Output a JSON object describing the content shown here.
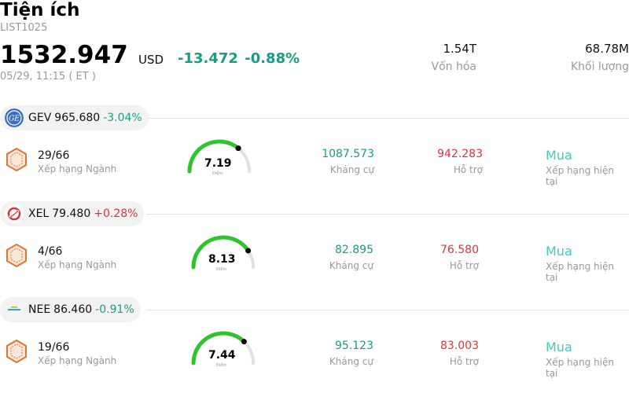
{
  "header": {
    "title": "Tiện ích",
    "code": "LIST1025",
    "price": "1532.947",
    "currency": "USD",
    "change": "-13.472",
    "change_pct": "-0.88%",
    "timestamp": "05/29, 11:15  ( ET )",
    "market_cap": "1.54T",
    "market_cap_label": "Vốn hóa",
    "volume": "68.78M",
    "volume_label": "Khối lượng"
  },
  "colors": {
    "down": "#1a9c82",
    "up": "#e0323c",
    "buy": "#3ecbc0",
    "gauge_fill": "#2ec42e",
    "gauge_track": "#e0e0e6",
    "rank_hex": "#d9773a"
  },
  "stocks": [
    {
      "ticker": "GEV",
      "price": "965.680",
      "change": "-3.04%",
      "logo_icon": "ge-logo-icon",
      "rank": "29/66",
      "rank_label": "Xếp hạng Ngành",
      "score": "7.19",
      "score_value": 7.19,
      "score_label": "Điểm",
      "resistance": "1087.573",
      "resistance_label": "Kháng cự",
      "support": "942.283",
      "support_label": "Hỗ trợ",
      "rating": "Mua",
      "rating_label": "Xếp hạng hiện tại"
    },
    {
      "ticker": "XEL",
      "price": "79.480",
      "change": "+0.28%",
      "logo_icon": "xcel-logo-icon",
      "rank": "4/66",
      "rank_label": "Xếp hạng Ngành",
      "score": "8.13",
      "score_value": 8.13,
      "score_label": "Điểm",
      "resistance": "82.895",
      "resistance_label": "Kháng cự",
      "support": "76.580",
      "support_label": "Hỗ trợ",
      "rating": "Mua",
      "rating_label": "Xếp hạng hiện tại"
    },
    {
      "ticker": "NEE",
      "price": "86.460",
      "change": "-0.91%",
      "logo_icon": "nextera-logo-icon",
      "rank": "19/66",
      "rank_label": "Xếp hạng Ngành",
      "score": "7.44",
      "score_value": 7.44,
      "score_label": "Điểm",
      "resistance": "95.123",
      "resistance_label": "Kháng cự",
      "support": "83.003",
      "support_label": "Hỗ trợ",
      "rating": "Mua",
      "rating_label": "Xếp hạng hiện tại"
    }
  ]
}
